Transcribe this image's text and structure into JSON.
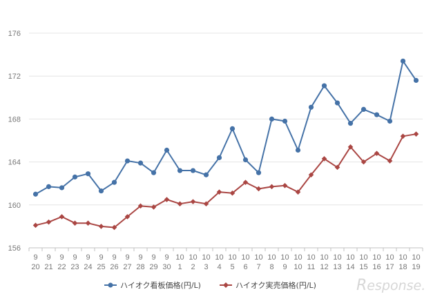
{
  "chart_data": {
    "type": "line",
    "title": "",
    "xlabel": "",
    "ylabel": "",
    "ylim": [
      156,
      176
    ],
    "yticks": [
      156,
      160,
      164,
      168,
      172,
      176
    ],
    "grid": "horizontal",
    "legend_position": "bottom",
    "categories": [
      {
        "month": "9",
        "day": "20"
      },
      {
        "month": "9",
        "day": "21"
      },
      {
        "month": "9",
        "day": "22"
      },
      {
        "month": "9",
        "day": "23"
      },
      {
        "month": "9",
        "day": "24"
      },
      {
        "month": "9",
        "day": "25"
      },
      {
        "month": "9",
        "day": "26"
      },
      {
        "month": "9",
        "day": "27"
      },
      {
        "month": "9",
        "day": "28"
      },
      {
        "month": "9",
        "day": "29"
      },
      {
        "month": "9",
        "day": "30"
      },
      {
        "month": "10",
        "day": "1"
      },
      {
        "month": "10",
        "day": "2"
      },
      {
        "month": "10",
        "day": "3"
      },
      {
        "month": "10",
        "day": "4"
      },
      {
        "month": "10",
        "day": "5"
      },
      {
        "month": "10",
        "day": "6"
      },
      {
        "month": "10",
        "day": "7"
      },
      {
        "month": "10",
        "day": "8"
      },
      {
        "month": "10",
        "day": "9"
      },
      {
        "month": "10",
        "day": "10"
      },
      {
        "month": "10",
        "day": "11"
      },
      {
        "month": "10",
        "day": "12"
      },
      {
        "month": "10",
        "day": "13"
      },
      {
        "month": "10",
        "day": "14"
      },
      {
        "month": "10",
        "day": "15"
      },
      {
        "month": "10",
        "day": "16"
      },
      {
        "month": "10",
        "day": "17"
      },
      {
        "month": "10",
        "day": "18"
      },
      {
        "month": "10",
        "day": "19"
      }
    ],
    "series": [
      {
        "name": "ハイオク看板価格(円/L)",
        "color": "#4572a7",
        "marker": "circle",
        "values": [
          161.0,
          161.7,
          161.6,
          162.6,
          162.9,
          161.3,
          162.1,
          164.1,
          163.9,
          163.0,
          165.1,
          163.2,
          163.2,
          162.8,
          164.4,
          167.1,
          164.2,
          163.0,
          168.0,
          167.8,
          165.1,
          169.1,
          171.1,
          169.5,
          167.6,
          168.9,
          168.4,
          167.8,
          173.4,
          171.6
        ]
      },
      {
        "name": "ハイオク実売価格(円/L)",
        "color": "#aa4643",
        "marker": "diamond",
        "values": [
          158.1,
          158.4,
          158.9,
          158.3,
          158.3,
          158.0,
          157.9,
          158.9,
          159.9,
          159.8,
          160.5,
          160.1,
          160.3,
          160.1,
          161.2,
          161.1,
          162.1,
          161.5,
          161.7,
          161.8,
          161.2,
          162.8,
          164.3,
          163.5,
          165.4,
          164.0,
          164.8,
          164.1,
          166.4,
          166.6
        ]
      }
    ]
  },
  "watermark": {
    "text_big": "R",
    "text_rest": "esponse."
  }
}
